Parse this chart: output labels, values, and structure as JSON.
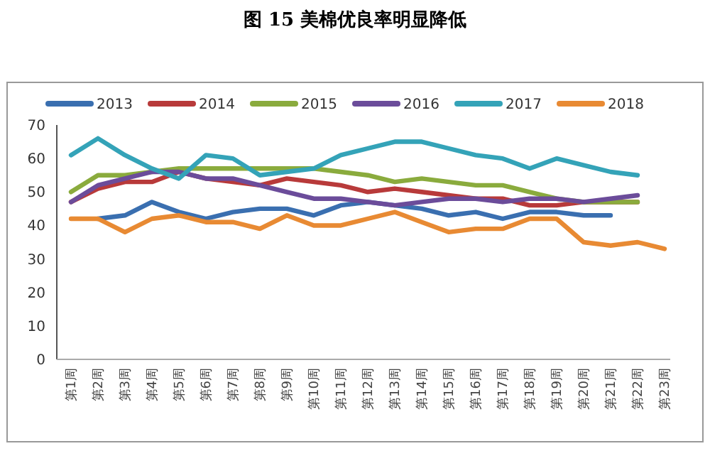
{
  "chart_data": {
    "type": "line",
    "title": "图 15 美棉优良率明显降低",
    "categories": [
      "第1周",
      "第2周",
      "第3周",
      "第4周",
      "第5周",
      "第6周",
      "第7周",
      "第8周",
      "第9周",
      "第10周",
      "第11周",
      "第12周",
      "第13周",
      "第14周",
      "第15周",
      "第16周",
      "第17周",
      "第18周",
      "第19周",
      "第20周",
      "第21周",
      "第22周",
      "第23周"
    ],
    "series": [
      {
        "name": "2013",
        "color": "#3a6fb0",
        "values": [
          null,
          42,
          43,
          47,
          44,
          42,
          44,
          45,
          45,
          43,
          46,
          47,
          46,
          45,
          43,
          44,
          42,
          44,
          44,
          43,
          43,
          null,
          null
        ]
      },
      {
        "name": "2014",
        "color": "#b83a3a",
        "values": [
          47,
          51,
          53,
          53,
          56,
          54,
          53,
          52,
          54,
          53,
          52,
          50,
          51,
          50,
          49,
          48,
          48,
          46,
          46,
          47,
          47,
          47,
          null
        ]
      },
      {
        "name": "2015",
        "color": "#8aab3d",
        "values": [
          50,
          55,
          55,
          56,
          57,
          57,
          57,
          57,
          57,
          57,
          56,
          55,
          53,
          54,
          53,
          52,
          52,
          50,
          48,
          47,
          47,
          47,
          null
        ]
      },
      {
        "name": "2016",
        "color": "#6b4c9a",
        "values": [
          47,
          52,
          54,
          56,
          56,
          54,
          54,
          52,
          50,
          48,
          48,
          47,
          46,
          47,
          48,
          48,
          47,
          48,
          48,
          47,
          48,
          49,
          null
        ]
      },
      {
        "name": "2017",
        "color": "#34a3b8",
        "values": [
          61,
          66,
          61,
          57,
          54,
          61,
          60,
          55,
          56,
          57,
          61,
          63,
          65,
          65,
          63,
          61,
          60,
          57,
          60,
          58,
          56,
          55,
          null
        ]
      },
      {
        "name": "2018",
        "color": "#e88a33",
        "values": [
          42,
          42,
          38,
          42,
          43,
          41,
          41,
          39,
          43,
          40,
          40,
          42,
          44,
          41,
          38,
          39,
          39,
          42,
          42,
          35,
          34,
          35,
          33
        ]
      }
    ],
    "ylim": [
      0,
      70
    ],
    "yticks": [
      0,
      10,
      20,
      30,
      40,
      50,
      60,
      70
    ],
    "legend": "top",
    "grid": false,
    "marker": "none",
    "line_style": "solid"
  }
}
